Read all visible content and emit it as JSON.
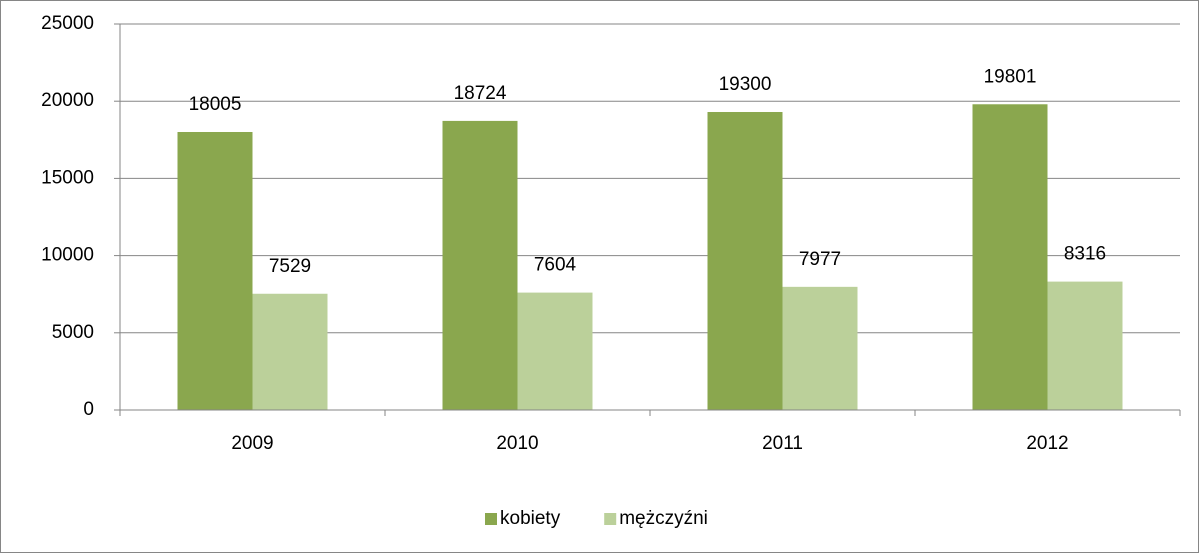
{
  "chart_data": {
    "type": "bar",
    "categories": [
      "2009",
      "2010",
      "2011",
      "2012"
    ],
    "series": [
      {
        "name": "kobiety",
        "color": "#8aa74e",
        "values": [
          18005,
          18724,
          19300,
          19801
        ]
      },
      {
        "name": "mężczyźni",
        "color": "#bbd09a",
        "values": [
          7529,
          7604,
          7977,
          8316
        ]
      }
    ],
    "ylim": [
      0,
      25000
    ],
    "yticks": [
      0,
      5000,
      10000,
      15000,
      20000,
      25000
    ],
    "grid": true,
    "legend": "bottom"
  }
}
